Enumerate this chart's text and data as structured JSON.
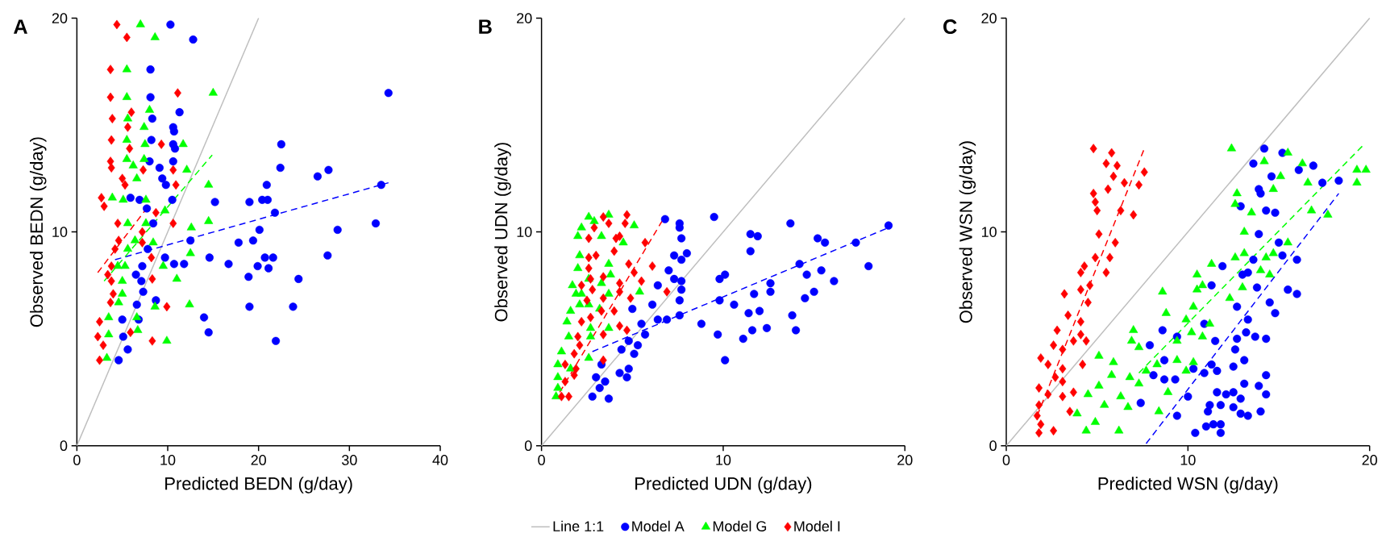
{
  "chart_data": [
    {
      "type": "scatter",
      "title": "A",
      "xlabel": "Predicted BEDN (g/day)",
      "ylabel": "Observed BEDN (g/day)",
      "xlim": [
        0,
        40
      ],
      "xticks": [
        0,
        10,
        20,
        30,
        40
      ],
      "ylim": [
        0,
        20
      ],
      "yticks": [
        0,
        10,
        20
      ],
      "grid": false,
      "series": [
        {
          "type": "line",
          "color": "#bebebe",
          "line_style": "solid",
          "x": [
            0,
            20
          ],
          "values": [
            0,
            20
          ]
        },
        {
          "color": "#0000ff",
          "marker": "circle",
          "x": [
            10.3,
            12.8,
            8.1,
            8.1,
            34.3,
            11.3,
            8.3,
            10.6,
            10.7,
            8.2,
            10.6,
            10.8,
            22.5,
            8.0,
            10.6,
            9.1,
            22.4,
            26.5,
            27.7,
            9.4,
            9.8,
            20.9,
            33.5,
            5.9,
            6.9,
            7.7,
            10.5,
            15.2,
            19.0,
            20.4,
            21.0,
            21.8,
            8.4,
            20.1,
            28.7,
            32.9,
            12.5,
            17.8,
            19.4,
            7.8,
            9.7,
            14.6,
            20.7,
            21.6,
            27.6,
            10.7,
            11.8,
            16.7,
            19.9,
            21.1,
            6.5,
            7.2,
            7.1,
            18.9,
            24.4,
            7.3,
            8.7,
            6.6,
            19.0,
            23.8,
            6.8,
            5.0,
            14.0,
            14.5,
            5.1,
            5.6,
            21.9,
            4.6
          ],
          "values": [
            19.7,
            19.0,
            17.6,
            16.3,
            16.5,
            15.6,
            15.3,
            14.9,
            14.7,
            14.3,
            14.1,
            13.9,
            14.1,
            13.3,
            13.3,
            13.0,
            13.0,
            12.6,
            12.9,
            12.5,
            12.2,
            12.2,
            12.2,
            11.6,
            11.5,
            11.1,
            11.5,
            11.4,
            11.4,
            11.5,
            11.5,
            10.9,
            10.4,
            10.1,
            10.1,
            10.4,
            9.6,
            9.5,
            9.6,
            9.2,
            8.8,
            8.8,
            8.8,
            8.8,
            8.9,
            8.5,
            8.5,
            8.5,
            8.4,
            8.3,
            8.0,
            8.4,
            7.7,
            7.9,
            7.8,
            7.2,
            6.8,
            6.6,
            6.5,
            6.5,
            5.9,
            5.9,
            6.0,
            5.3,
            5.1,
            4.5,
            4.9,
            4.0
          ]
        },
        {
          "color": "#00ff00",
          "marker": "triangle",
          "x": [
            7.0,
            8.6,
            5.5,
            15.0,
            5.5,
            8.0,
            5.6,
            7.4,
            5.5,
            7.5,
            11.7,
            5.5,
            6.2,
            7.4,
            12.1,
            6.6,
            14.5,
            3.9,
            5.1,
            7.6,
            9.7,
            5.6,
            7.6,
            12.6,
            14.5,
            6.4,
            8.4,
            5.6,
            12.5,
            4.5,
            5.3,
            9.5,
            11.0,
            5.0,
            5.0,
            4.6,
            8.6,
            12.4,
            3.5,
            6.6,
            6.7,
            3.5,
            9.9,
            3.3
          ],
          "values": [
            19.7,
            19.1,
            17.6,
            16.5,
            16.3,
            15.7,
            15.3,
            14.9,
            14.3,
            14.1,
            14.1,
            13.4,
            13.1,
            13.4,
            12.9,
            12.5,
            12.2,
            11.6,
            11.5,
            11.5,
            11.0,
            10.4,
            10.4,
            10.2,
            10.5,
            9.6,
            9.5,
            9.2,
            9.0,
            8.4,
            8.4,
            8.4,
            7.8,
            7.7,
            7.1,
            6.7,
            6.5,
            6.6,
            6.0,
            6.0,
            5.4,
            5.2,
            4.9,
            4.1
          ]
        },
        {
          "color": "#ff0000",
          "marker": "diamond",
          "x": [
            4.4,
            5.5,
            3.7,
            3.7,
            11.1,
            6.0,
            3.9,
            5.6,
            3.8,
            9.3,
            5.8,
            3.7,
            3.8,
            7.3,
            10.6,
            5.0,
            5.3,
            10.9,
            2.7,
            3.0,
            8.7,
            4.5,
            10.6,
            7.2,
            4.6,
            7.2,
            4.2,
            8.2,
            3.8,
            3.4,
            3.8,
            8.3,
            4.0,
            3.7,
            9.9,
            2.5,
            2.3,
            2.9,
            8.3,
            5.9,
            2.5
          ],
          "values": [
            19.7,
            19.1,
            17.6,
            16.3,
            16.5,
            15.6,
            15.3,
            14.9,
            14.3,
            14.1,
            13.9,
            13.3,
            13.0,
            12.9,
            12.9,
            12.5,
            12.2,
            12.2,
            11.6,
            11.2,
            10.9,
            10.4,
            10.4,
            10.0,
            9.6,
            9.5,
            9.2,
            8.8,
            8.4,
            8.0,
            7.7,
            7.8,
            7.1,
            6.7,
            6.5,
            5.8,
            5.1,
            4.7,
            4.9,
            5.3,
            4.0
          ]
        },
        {
          "type": "line",
          "color": "#0000ff",
          "line_style": "dashed",
          "x": [
            4.2,
            34.3
          ],
          "values": [
            8.7,
            12.3
          ]
        },
        {
          "type": "line",
          "color": "#00ff00",
          "line_style": "dashed",
          "x": [
            3.0,
            14.9
          ],
          "values": [
            7.7,
            13.6
          ]
        },
        {
          "type": "line",
          "color": "#ff0000",
          "line_style": "dashed",
          "x": [
            2.3,
            7.5
          ],
          "values": [
            8.1,
            11.0
          ]
        }
      ]
    },
    {
      "type": "scatter",
      "title": "B",
      "xlabel": "Predicted UDN (g/day)",
      "ylabel": "Observed UDN (g/day)",
      "xlim": [
        0,
        20
      ],
      "xticks": [
        0,
        10,
        20
      ],
      "ylim": [
        0,
        20
      ],
      "yticks": [
        0,
        10,
        20
      ],
      "grid": false,
      "legend": "bottom",
      "series": [
        {
          "type": "line",
          "name": "Line 1:1",
          "color": "#bebebe",
          "line_style": "solid",
          "x": [
            0,
            20
          ],
          "values": [
            0,
            20
          ]
        },
        {
          "name": "Model A",
          "color": "#0000ff",
          "marker": "circle",
          "x": [
            6.8,
            7.6,
            7.6,
            9.5,
            13.7,
            19.1,
            7.7,
            11.5,
            11.9,
            15.2,
            15.6,
            17.3,
            7.3,
            8.0,
            7.7,
            11.5,
            14.2,
            18.0,
            7.0,
            10.1,
            9.8,
            14.6,
            15.4,
            7.3,
            7.7,
            12.6,
            16.1,
            6.4,
            7.7,
            11.7,
            12.6,
            15.0,
            9.8,
            14.5,
            7.6,
            6.1,
            5.0,
            10.6,
            11.4,
            12.0,
            13.8,
            6.4,
            6.9,
            7.6,
            5.5,
            8.8,
            9.7,
            11.6,
            12.4,
            14.0,
            11.1,
            5.7,
            4.8,
            4.4,
            5.3,
            5.1,
            10.1,
            3.3,
            4.8,
            4.3,
            4.7,
            3.0,
            3.5,
            3.2,
            2.8,
            3.7
          ],
          "values": [
            10.6,
            10.4,
            10.2,
            10.7,
            10.4,
            10.3,
            9.7,
            9.9,
            9.8,
            9.7,
            9.5,
            9.5,
            8.9,
            9.0,
            8.7,
            9.1,
            8.5,
            8.4,
            8.2,
            8.0,
            7.8,
            8.0,
            8.2,
            7.8,
            7.7,
            7.6,
            7.7,
            7.5,
            7.3,
            7.1,
            7.2,
            7.2,
            6.8,
            6.9,
            6.8,
            6.6,
            6.4,
            6.6,
            6.2,
            6.3,
            6.1,
            5.9,
            5.9,
            6.1,
            5.7,
            5.7,
            5.2,
            5.4,
            5.5,
            5.4,
            5.0,
            5.2,
            4.9,
            4.5,
            4.7,
            4.3,
            4.0,
            3.8,
            3.6,
            3.4,
            3.2,
            3.2,
            3.0,
            2.7,
            2.3,
            2.2
          ]
        },
        {
          "name": "Model G",
          "color": "#00ff00",
          "marker": "triangle",
          "x": [
            2.6,
            3.7,
            2.9,
            5.1,
            2.2,
            3.3,
            2.0,
            4.5,
            2.1,
            3.0,
            3.7,
            2.0,
            3.8,
            2.6,
            1.7,
            3.3,
            5.4,
            1.9,
            3.7,
            2.6,
            1.6,
            3.2,
            1.4,
            2.7,
            3.7,
            1.5,
            2.7,
            1.1,
            2.6,
            0.9,
            1.6,
            0.9,
            0.9,
            0.8,
            1.3,
            2.1,
            2.2
          ],
          "values": [
            10.7,
            10.8,
            10.5,
            10.3,
            10.2,
            9.8,
            9.8,
            9.5,
            8.9,
            null,
            8.5,
            8.3,
            8.0,
            7.8,
            7.5,
            7.6,
            7.2,
            7.1,
            7.1,
            6.6,
            6.3,
            6.4,
            5.8,
            5.5,
            5.5,
            5.1,
            5.1,
            4.4,
            4.1,
            3.8,
            3.6,
            3.2,
            2.7,
            2.3,
            null,
            6.6,
            7.1
          ]
        },
        {
          "name": "Model I",
          "color": "#ff0000",
          "marker": "diamond",
          "x": [
            3.4,
            4.7,
            3.7,
            4.6,
            2.9,
            4.1,
            4.3,
            2.6,
            5.7,
            4.0,
            2.6,
            3.0,
            2.6,
            4.8,
            6.1,
            3.4,
            5.1,
            2.7,
            2.2,
            4.3,
            5.5,
            2.8,
            4.3,
            6.9,
            4.9,
            3.4,
            2.5,
            3.3,
            4.0,
            2.7,
            2.2,
            4.3,
            3.4,
            2.0,
            4.7,
            2.1,
            1.8,
            3.4,
            1.3,
            1.9,
            1.3,
            1.8,
            1.5,
            1.1
          ],
          "values": [
            10.7,
            10.8,
            10.4,
            10.4,
            10.2,
            9.7,
            9.8,
            9.7,
            9.5,
            9.1,
            8.8,
            8.9,
            8.3,
            8.5,
            8.4,
            7.9,
            8.1,
            7.8,
            7.5,
            7.6,
            7.7,
            7.3,
            7.2,
            7.2,
            6.9,
            6.9,
            6.8,
            6.3,
            6.3,
            6.0,
            5.8,
            5.6,
            5.2,
            5.1,
            5.4,
            4.7,
            4.3,
            4.0,
            3.8,
            3.6,
            3.0,
            3.3,
            2.3,
            2.3
          ]
        },
        {
          "type": "line",
          "color": "#0000ff",
          "line_style": "dashed",
          "x": [
            2.8,
            19.1
          ],
          "values": [
            4.4,
            10.2
          ]
        },
        {
          "type": "line",
          "color": "#ff0000",
          "line_style": "dashed",
          "x": [
            1.0,
            6.7
          ],
          "values": [
            2.5,
            10.6
          ]
        }
      ]
    },
    {
      "type": "scatter",
      "title": "C",
      "xlabel": "Predicted WSN (g/day)",
      "ylabel": "Observed WSN (g/day)",
      "xlim": [
        0,
        20
      ],
      "xticks": [
        0,
        10,
        20
      ],
      "ylim": [
        0,
        20
      ],
      "yticks": [
        0,
        10,
        20
      ],
      "grid": false,
      "series": [
        {
          "type": "line",
          "color": "#bebebe",
          "line_style": "solid",
          "x": [
            0,
            20
          ],
          "values": [
            0,
            20
          ]
        },
        {
          "color": "#0000ff",
          "marker": "circle",
          "x": [
            14.2,
            15.2,
            13.6,
            16.1,
            16.9,
            14.6,
            17.4,
            18.3,
            13.9,
            14.0,
            12.9,
            14.3,
            14.8,
            13.9,
            15.0,
            13.6,
            15.2,
            16.0,
            11.9,
            13.0,
            13.3,
            13.8,
            11.3,
            15.5,
            16.0,
            14.5,
            12.7,
            14.8,
            13.3,
            10.9,
            8.6,
            13.2,
            9.4,
            13.7,
            14.3,
            11.5,
            12.7,
            7.9,
            12.6,
            8.7,
            11.3,
            13.1,
            12.5,
            8.1,
            8.7,
            9.3,
            10.3,
            10.9,
            11.6,
            14.3,
            13.1,
            13.9,
            11.6,
            12.1,
            12.5,
            12.9,
            14.3,
            11.2,
            11.8,
            12.5,
            10.0,
            7.4,
            11.1,
            12.9,
            13.3,
            14.0,
            9.4,
            11.4,
            11.0,
            11.8,
            11.8,
            10.4
          ],
          "values": [
            13.9,
            13.7,
            13.2,
            12.9,
            13.1,
            12.6,
            12.3,
            12.4,
            12.0,
            11.8,
            11.2,
            11.0,
            10.9,
            9.9,
            9.5,
            8.7,
            8.9,
            8.7,
            8.4,
            8.0,
            8.1,
            7.4,
            7.5,
            7.3,
            7.1,
            6.7,
            6.5,
            6.2,
            5.9,
            5.7,
            5.4,
            5.3,
            5.1,
            5.1,
            5.0,
            4.9,
            5.0,
            4.7,
            4.5,
            4.0,
            3.8,
            4.0,
            3.7,
            3.3,
            3.1,
            3.1,
            3.6,
            3.4,
            3.5,
            3.3,
            2.9,
            2.8,
            2.5,
            2.4,
            2.5,
            2.2,
            2.4,
            1.9,
            1.9,
            1.8,
            2.3,
            2.0,
            1.6,
            1.5,
            1.4,
            1.6,
            1.4,
            1.0,
            0.9,
            1.0,
            0.6,
            0.6
          ]
        },
        {
          "color": "#00ff00",
          "marker": "triangle",
          "x": [
            12.4,
            15.5,
            14.2,
            16.3,
            15.1,
            14.7,
            16.6,
            19.3,
            19.8,
            19.3,
            12.7,
            12.6,
            13.5,
            16.8,
            17.7,
            13.1,
            15.5,
            12.6,
            13.1,
            14.3,
            14.7,
            11.3,
            14.0,
            14.5,
            10.5,
            10.8,
            13.0,
            8.6,
            10.5,
            12.3,
            10.3,
            8.8,
            9.9,
            11.2,
            7.0,
            10.2,
            10.8,
            6.9,
            9.4,
            7.3,
            5.1,
            5.9,
            9.4,
            10.3,
            8.3,
            7.7,
            9.9,
            5.8,
            6.8,
            7.3,
            5.1,
            4.5,
            8.9,
            6.3,
            3.9,
            5.4,
            6.7,
            8.4,
            4.9,
            4.4,
            6.2
          ],
          "values": [
            13.9,
            13.7,
            13.3,
            13.2,
            12.6,
            12.0,
            12.3,
            12.9,
            12.9,
            12.3,
            11.8,
            11.3,
            10.9,
            11.0,
            10.8,
            10.0,
            9.5,
            8.8,
            9.0,
            8.8,
            9.0,
            8.5,
            8.2,
            8.0,
            8.0,
            7.5,
            7.4,
            7.2,
            7.3,
            6.9,
            6.5,
            6.2,
            5.9,
            5.7,
            5.4,
            5.3,
            5.1,
            4.9,
            4.9,
            4.6,
            4.2,
            3.9,
            4.0,
            3.9,
            3.8,
            3.5,
            3.5,
            3.3,
            3.2,
            2.9,
            2.8,
            2.4,
            2.5,
            2.3,
            1.5,
            1.9,
            1.8,
            1.6,
            1.1,
            0.7,
            0.7
          ]
        },
        {
          "color": "#ff0000",
          "marker": "diamond",
          "x": [
            4.8,
            5.8,
            5.5,
            6.1,
            7.6,
            5.9,
            6.5,
            7.3,
            5.6,
            4.8,
            4.9,
            5.0,
            6.3,
            7.0,
            5.1,
            6.0,
            4.9,
            5.7,
            4.3,
            5.5,
            4.1,
            4.1,
            4.6,
            3.2,
            4.5,
            3.4,
            4.1,
            2.8,
            4.1,
            3.7,
            2.6,
            4.4,
            3.1,
            1.9,
            2.3,
            4.2,
            3.1,
            2.7,
            1.8,
            3.1,
            2.3,
            3.7,
            3.1,
            1.8,
            3.5,
            1.7,
            1.9,
            2.6,
            1.8
          ],
          "values": [
            13.9,
            13.7,
            13.2,
            13.1,
            12.8,
            12.6,
            12.3,
            12.2,
            12.0,
            11.8,
            11.4,
            11.0,
            11.0,
            10.8,
            9.9,
            9.5,
            8.8,
            8.8,
            8.4,
            8.1,
            8.1,
            7.3,
            7.5,
            7.1,
            6.7,
            6.1,
            5.8,
            5.4,
            5.2,
            4.9,
            4.7,
            4.9,
            4.5,
            4.1,
            3.8,
            3.8,
            3.6,
            3.2,
            2.7,
            3.0,
            2.4,
            2.5,
            2.3,
            1.9,
            1.6,
            1.4,
            1.0,
            0.7,
            0.6
          ]
        },
        {
          "type": "line",
          "color": "#0000ff",
          "line_style": "dashed",
          "x": [
            7.7,
            18.3
          ],
          "values": [
            0.1,
            11.8
          ]
        },
        {
          "type": "line",
          "color": "#00ff00",
          "line_style": "dashed",
          "x": [
            7.3,
            19.7
          ],
          "values": [
            3.4,
            14.1
          ]
        },
        {
          "type": "line",
          "color": "#ff0000",
          "line_style": "dashed",
          "x": [
            1.7,
            7.6
          ],
          "values": [
            1.4,
            13.9
          ]
        }
      ]
    }
  ]
}
